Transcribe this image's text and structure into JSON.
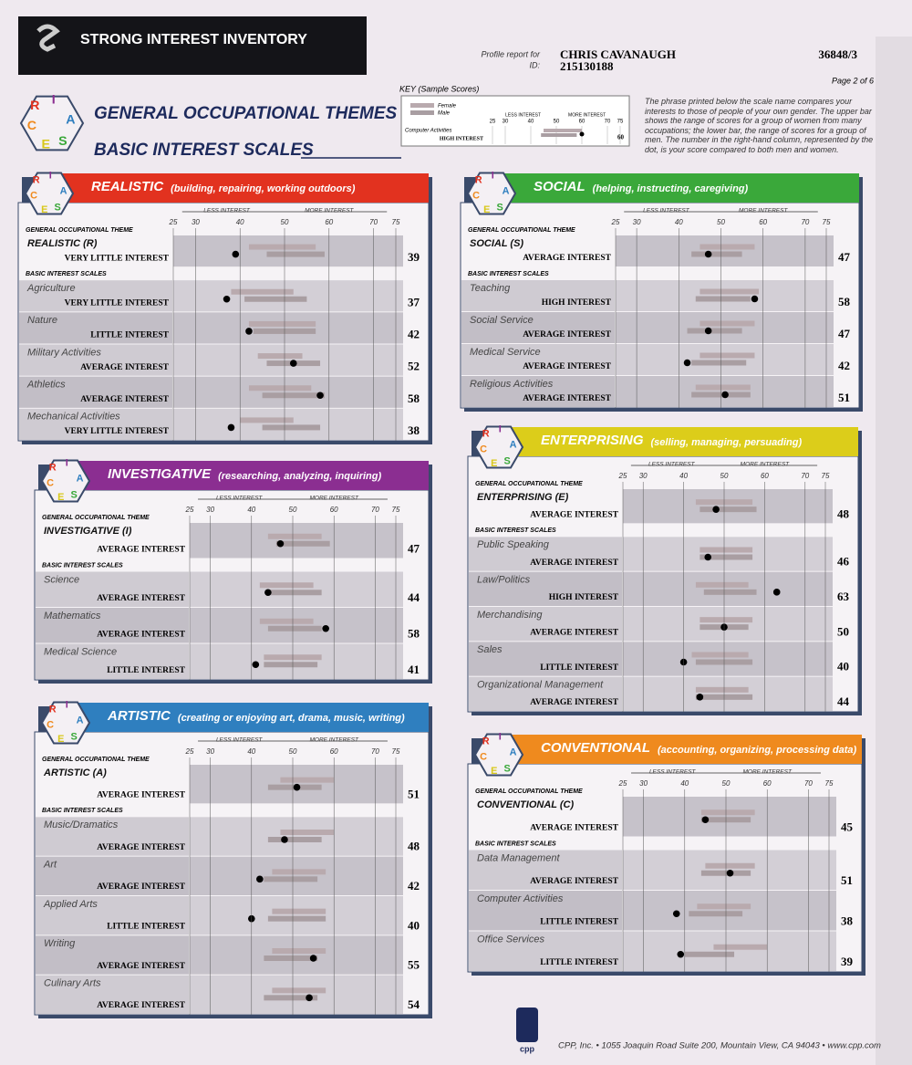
{
  "header": {
    "brand": "STRONG INTEREST INVENTORY",
    "profile_label": "Profile report for",
    "id_label": "ID:",
    "name": "CHRIS CAVANAUGH",
    "id": "215130188",
    "code": "36848/3",
    "page": "Page 2 of 6"
  },
  "titles": {
    "got": "GENERAL OCCUPATIONAL THEMES",
    "bis": "BASIC INTEREST SCALES"
  },
  "hex_letters": [
    "R",
    "I",
    "A",
    "S",
    "E",
    "C"
  ],
  "scale_ticks": [
    25,
    30,
    40,
    50,
    60,
    70,
    75
  ],
  "less_interest": "LESS INTEREST",
  "more_interest": "MORE INTEREST",
  "got_label": "GENERAL OCCUPATIONAL THEME",
  "bis_label": "BASIC INTEREST SCALES",
  "key": {
    "title": "KEY (Sample Scores)",
    "female": "Female",
    "male": "Male",
    "sample": {
      "name": "Computer Activities",
      "level": "HIGH INTEREST",
      "score": 60,
      "female": [
        45,
        60
      ],
      "male": [
        44,
        58
      ]
    },
    "description": "The phrase printed below the scale name compares your interests to those of people of your own gender. The upper bar shows the range of scores for a group of women from many occupations; the lower bar, the range of scores for a group of men. The number in the right-hand column, represented by the dot, is your score compared to both men and women."
  },
  "sections": [
    {
      "title": "REALISTIC",
      "subtitle": "(building, repairing, working outdoors)",
      "color": "#e2321f",
      "theme": {
        "name": "REALISTIC (R)",
        "level": "VERY LITTLE INTEREST",
        "score": 39,
        "female": [
          42,
          57
        ],
        "male": [
          46,
          59
        ]
      },
      "scales": [
        {
          "name": "Agriculture",
          "level": "VERY LITTLE INTEREST",
          "score": 37,
          "female": [
            38,
            52
          ],
          "male": [
            41,
            55
          ]
        },
        {
          "name": "Nature",
          "level": "LITTLE INTEREST",
          "score": 42,
          "female": [
            42,
            57
          ],
          "male": [
            43,
            57
          ]
        },
        {
          "name": "Military Activities",
          "level": "AVERAGE INTEREST",
          "score": 52,
          "female": [
            44,
            54
          ],
          "male": [
            46,
            58
          ]
        },
        {
          "name": "Athletics",
          "level": "AVERAGE INTEREST",
          "score": 58,
          "female": [
            42,
            56
          ],
          "male": [
            45,
            59
          ]
        },
        {
          "name": "Mechanical Activities",
          "level": "VERY LITTLE INTEREST",
          "score": 38,
          "female": [
            40,
            52
          ],
          "male": [
            45,
            58
          ]
        }
      ]
    },
    {
      "title": "INVESTIGATIVE",
      "subtitle": "(researching, analyzing, inquiring)",
      "color": "#8b2e91",
      "theme": {
        "name": "INVESTIGATIVE (I)",
        "level": "AVERAGE INTEREST",
        "score": 47,
        "female": [
          44,
          57
        ],
        "male": [
          46,
          59
        ]
      },
      "scales": [
        {
          "name": "Science",
          "level": "AVERAGE INTEREST",
          "score": 44,
          "female": [
            42,
            55
          ],
          "male": [
            44,
            57
          ]
        },
        {
          "name": "Mathematics",
          "level": "AVERAGE INTEREST",
          "score": 58,
          "female": [
            42,
            55
          ],
          "male": [
            44,
            57
          ]
        },
        {
          "name": "Medical Science",
          "level": "LITTLE INTEREST",
          "score": 41,
          "female": [
            43,
            57
          ],
          "male": [
            43,
            56
          ]
        }
      ]
    },
    {
      "title": "ARTISTIC",
      "subtitle": "(creating or enjoying art, drama, music, writing)",
      "color": "#2f7fbf",
      "theme": {
        "name": "ARTISTIC (A)",
        "level": "AVERAGE INTEREST",
        "score": 51,
        "female": [
          47,
          60
        ],
        "male": [
          44,
          57
        ]
      },
      "scales": [
        {
          "name": "Music/Dramatics",
          "level": "AVERAGE INTEREST",
          "score": 48,
          "female": [
            47,
            60
          ],
          "male": [
            44,
            57
          ]
        },
        {
          "name": "Art",
          "level": "AVERAGE INTEREST",
          "score": 42,
          "female": [
            45,
            58
          ],
          "male": [
            43,
            56
          ]
        },
        {
          "name": "Applied Arts",
          "level": "LITTLE INTEREST",
          "score": 40,
          "female": [
            45,
            58
          ],
          "male": [
            44,
            58
          ]
        },
        {
          "name": "Writing",
          "level": "AVERAGE INTEREST",
          "score": 55,
          "female": [
            45,
            58
          ],
          "male": [
            43,
            56
          ]
        },
        {
          "name": "Culinary Arts",
          "level": "AVERAGE INTEREST",
          "score": 54,
          "female": [
            45,
            58
          ],
          "male": [
            43,
            56
          ]
        }
      ]
    },
    {
      "title": "SOCIAL",
      "subtitle": "(helping, instructing, caregiving)",
      "color": "#3aa83a",
      "theme": {
        "name": "SOCIAL (S)",
        "level": "AVERAGE INTEREST",
        "score": 47,
        "female": [
          45,
          58
        ],
        "male": [
          43,
          55
        ]
      },
      "scales": [
        {
          "name": "Teaching",
          "level": "HIGH INTEREST",
          "score": 58,
          "female": [
            45,
            59
          ],
          "male": [
            44,
            57
          ]
        },
        {
          "name": "Social Service",
          "level": "AVERAGE INTEREST",
          "score": 47,
          "female": [
            45,
            58
          ],
          "male": [
            42,
            55
          ]
        },
        {
          "name": "Medical Service",
          "level": "AVERAGE INTEREST",
          "score": 42,
          "female": [
            45,
            58
          ],
          "male": [
            43,
            56
          ]
        },
        {
          "name": "Religious Activities",
          "level": "AVERAGE INTEREST",
          "score": 51,
          "female": [
            44,
            57
          ],
          "male": [
            43,
            57
          ]
        }
      ]
    },
    {
      "title": "ENTERPRISING",
      "subtitle": "(selling, managing, persuading)",
      "color": "#dccd1a",
      "theme": {
        "name": "ENTERPRISING (E)",
        "level": "AVERAGE INTEREST",
        "score": 48,
        "female": [
          43,
          57
        ],
        "male": [
          44,
          58
        ]
      },
      "scales": [
        {
          "name": "Public Speaking",
          "level": "AVERAGE INTEREST",
          "score": 46,
          "female": [
            44,
            57
          ],
          "male": [
            44,
            57
          ]
        },
        {
          "name": "Law/Politics",
          "level": "HIGH INTEREST",
          "score": 63,
          "female": [
            43,
            56
          ],
          "male": [
            45,
            58
          ]
        },
        {
          "name": "Merchandising",
          "level": "AVERAGE INTEREST",
          "score": 50,
          "female": [
            44,
            57
          ],
          "male": [
            44,
            56
          ]
        },
        {
          "name": "Sales",
          "level": "LITTLE INTEREST",
          "score": 40,
          "female": [
            42,
            56
          ],
          "male": [
            43,
            57
          ]
        },
        {
          "name": "Organizational Management",
          "level": "AVERAGE INTEREST",
          "score": 44,
          "female": [
            43,
            56
          ],
          "male": [
            43,
            57
          ]
        }
      ]
    },
    {
      "title": "CONVENTIONAL",
      "subtitle": "(accounting, organizing, processing data)",
      "color": "#ef8a1e",
      "theme": {
        "name": "CONVENTIONAL (C)",
        "level": "AVERAGE INTEREST",
        "score": 45,
        "female": [
          44,
          57
        ],
        "male": [
          44,
          56
        ]
      },
      "scales": [
        {
          "name": "Data Management",
          "level": "AVERAGE INTEREST",
          "score": 51,
          "female": [
            45,
            57
          ],
          "male": [
            44,
            56
          ]
        },
        {
          "name": "Computer Activities",
          "level": "LITTLE INTEREST",
          "score": 38,
          "female": [
            43,
            56
          ],
          "male": [
            41,
            54
          ]
        },
        {
          "name": "Office Services",
          "level": "LITTLE INTEREST",
          "score": 39,
          "female": [
            47,
            60
          ],
          "male": [
            40,
            52
          ]
        }
      ]
    }
  ],
  "footer": {
    "logo": "cpp",
    "address": "CPP, Inc. • 1055 Joaquin Road Suite 200, Mountain View, CA 94043 • www.cpp.com"
  }
}
